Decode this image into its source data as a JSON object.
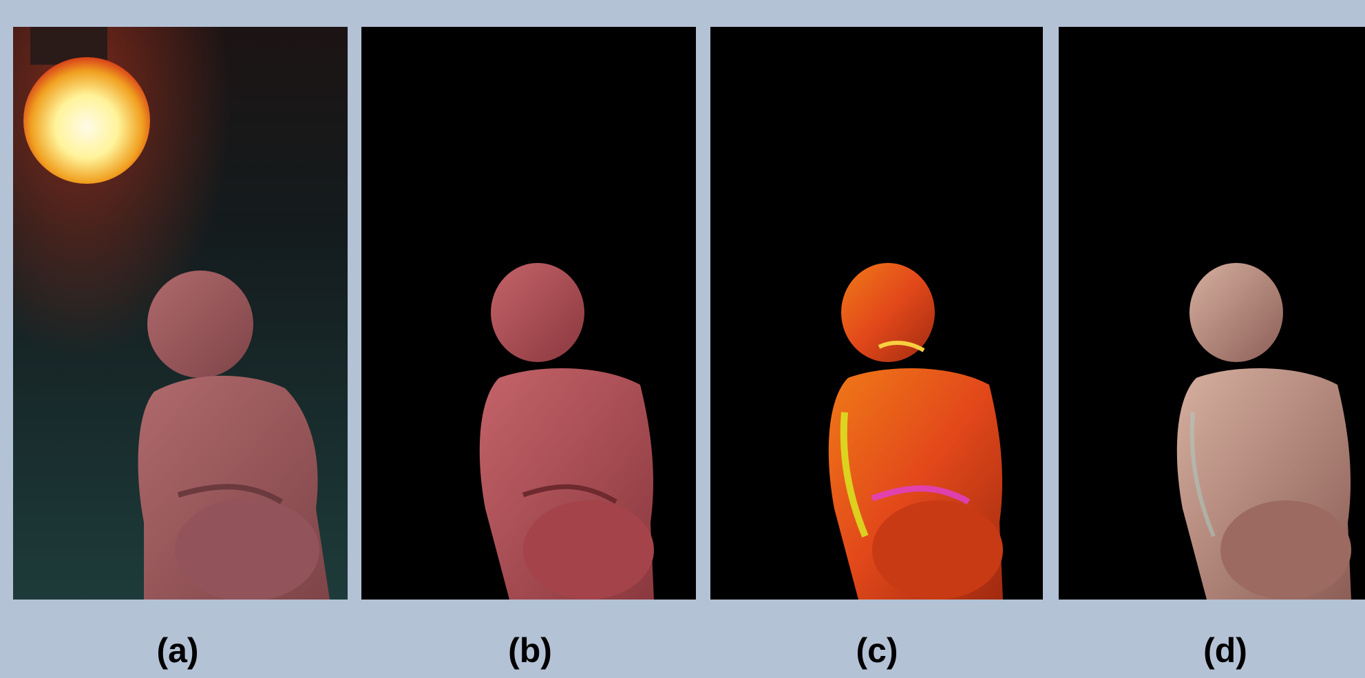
{
  "figure": {
    "panels": [
      {
        "label": "(a)"
      },
      {
        "label": "(b)"
      },
      {
        "label": "(c)"
      },
      {
        "label": "(d)"
      }
    ]
  },
  "colors": {
    "background": "#b4c2d6",
    "panel_fill": "#000000",
    "figurine_original": "#a65a5e",
    "figurine_shading": "#b9545a",
    "figurine_specular": "#e0561d",
    "figurine_relit": "#b98a80"
  }
}
